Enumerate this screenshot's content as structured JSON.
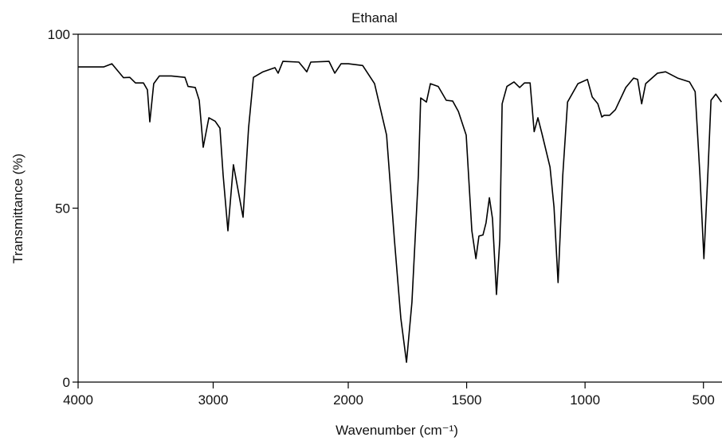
{
  "chart_data": {
    "type": "line",
    "title": "Ethanal",
    "x_label": "Wavenumber (cm⁻¹)",
    "y_label": "Transmittance (%)",
    "x": [
      4000,
      3811,
      3750,
      3664,
      3617,
      3575,
      3516,
      3487,
      3469,
      3440,
      3398,
      3310,
      3209,
      3186,
      3133,
      3103,
      3074,
      3032,
      2985,
      2950,
      2926,
      2891,
      2850,
      2779,
      2738,
      2702,
      2631,
      2543,
      2519,
      2484,
      2366,
      2307,
      2277,
      2142,
      2100,
      2053,
      2000,
      1939,
      1889,
      1838,
      1805,
      1778,
      1754,
      1731,
      1704,
      1694,
      1670,
      1653,
      1620,
      1586,
      1559,
      1535,
      1502,
      1478,
      1461,
      1448,
      1431,
      1418,
      1404,
      1391,
      1374,
      1360,
      1350,
      1330,
      1300,
      1276,
      1256,
      1232,
      1215,
      1199,
      1182,
      1148,
      1131,
      1114,
      1094,
      1074,
      1030,
      990,
      970,
      946,
      929,
      919,
      896,
      872,
      828,
      795,
      778,
      761,
      744,
      694,
      660,
      609,
      559,
      535,
      515,
      498,
      481,
      468,
      448,
      424
    ],
    "values": [
      90.6,
      90.6,
      91.5,
      87.5,
      87.6,
      86,
      86,
      84,
      74.8,
      85.8,
      88,
      88,
      87.6,
      85,
      84.7,
      81,
      67.5,
      76,
      75,
      73,
      59.5,
      43.5,
      62.5,
      47.4,
      73,
      87.6,
      89.2,
      90.4,
      88.8,
      92.2,
      92,
      89.2,
      92,
      92.2,
      88.8,
      91.5,
      91.5,
      91,
      85.8,
      71,
      41,
      18.3,
      5.7,
      22.9,
      59.5,
      81.7,
      80.5,
      85.8,
      85,
      81,
      80.8,
      77.8,
      71,
      43.5,
      35.5,
      42,
      42.3,
      45.8,
      53,
      47,
      25.2,
      41,
      80,
      85,
      86.3,
      84.7,
      86,
      86,
      72,
      76,
      71.4,
      61.8,
      50.3,
      28.6,
      59.5,
      80.5,
      85.8,
      87,
      82,
      80,
      76.2,
      76.7,
      76.7,
      78.3,
      84.7,
      87.4,
      87,
      80,
      85.8,
      88.8,
      89.2,
      87.4,
      86.3,
      83.5,
      59.5,
      35.5,
      60.6,
      81,
      82.8,
      80.5
    ],
    "color": "#000000",
    "xlim": [
      4000,
      425
    ],
    "x_scale_change": 2000,
    "xticks": [
      4000,
      3000,
      2000,
      1500,
      1000,
      500
    ],
    "ylim": [
      0,
      100
    ],
    "yticks": [
      0,
      50,
      100
    ]
  }
}
